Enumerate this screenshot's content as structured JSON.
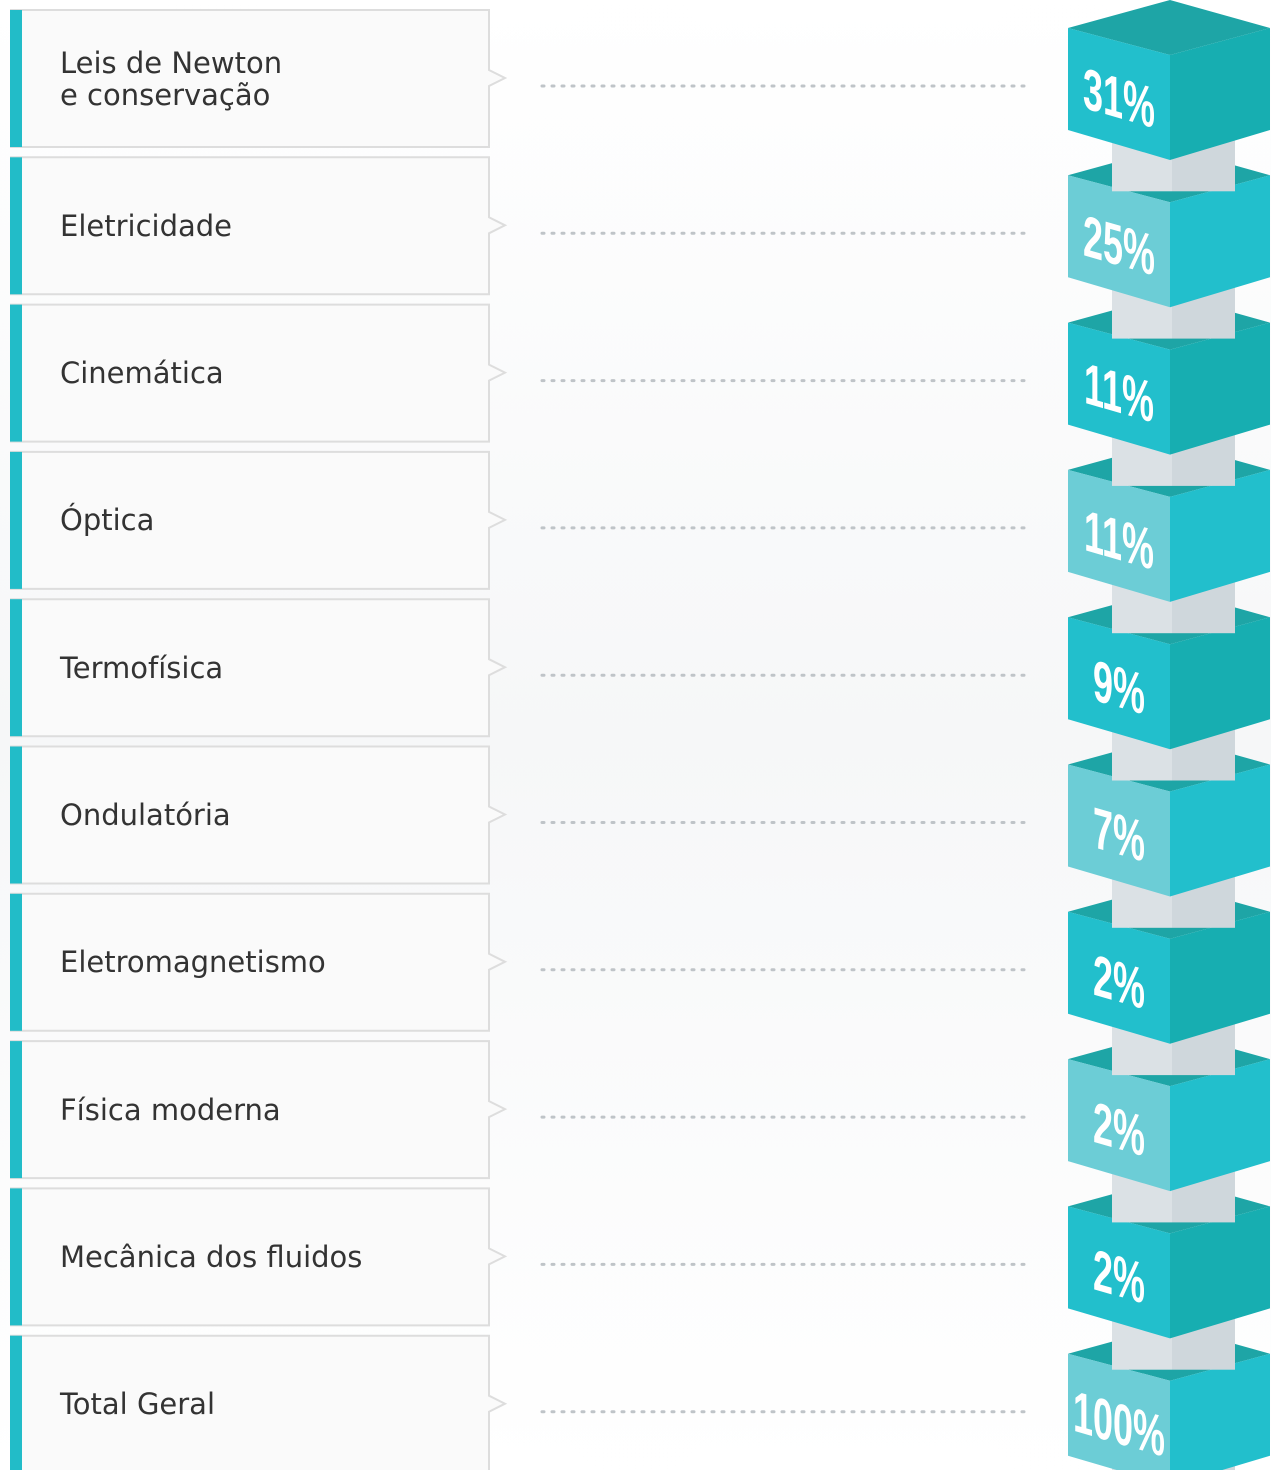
{
  "chart_data": {
    "type": "cube-list",
    "categories": [
      "Leis de Newton\ne conservação",
      "Eletricidade",
      "Cinemática",
      "Óptica",
      "Termofísica",
      "Ondulatória",
      "Eletromagnetismo",
      "Física moderna",
      "Mecânica dos fluidos",
      "Total Geral"
    ],
    "values": [
      31,
      25,
      11,
      11,
      9,
      7,
      2,
      2,
      2,
      100
    ],
    "value_labels": [
      "31%",
      "25%",
      "11%",
      "11%",
      "9%",
      "7%",
      "2%",
      "2%",
      "2%",
      "100%"
    ],
    "colors": [
      "#22bfcc",
      "#6ccdd6"
    ]
  }
}
